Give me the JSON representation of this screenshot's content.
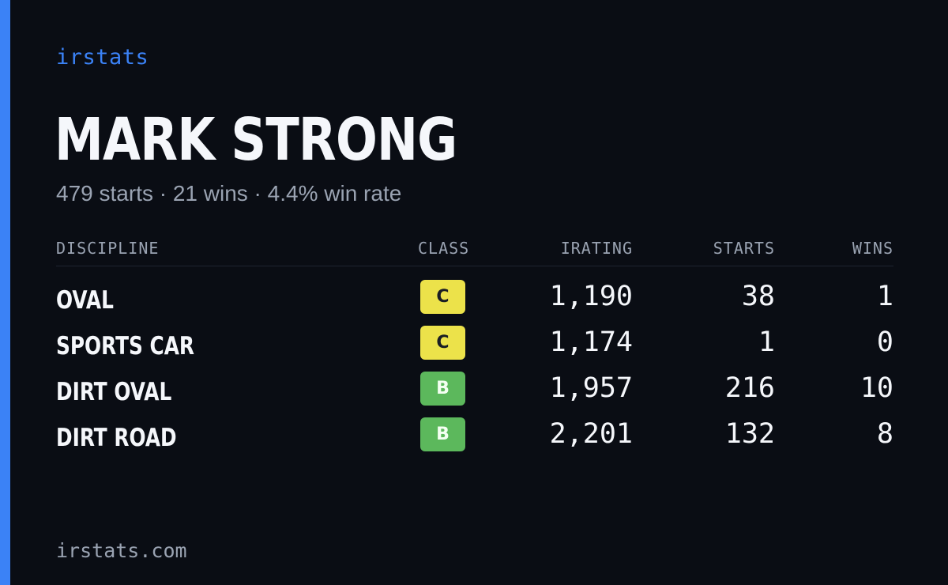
{
  "brand": "irstats",
  "player": {
    "name": "MARK STRONG",
    "summary": "479 starts · 21 wins · 4.4% win rate"
  },
  "table": {
    "headers": {
      "discipline": "DISCIPLINE",
      "class": "CLASS",
      "irating": "IRATING",
      "starts": "STARTS",
      "wins": "WINS"
    },
    "rows": [
      {
        "discipline": "OVAL",
        "class": "C",
        "irating": "1,190",
        "starts": "38",
        "wins": "1"
      },
      {
        "discipline": "SPORTS CAR",
        "class": "C",
        "irating": "1,174",
        "starts": "1",
        "wins": "0"
      },
      {
        "discipline": "DIRT OVAL",
        "class": "B",
        "irating": "1,957",
        "starts": "216",
        "wins": "10"
      },
      {
        "discipline": "DIRT ROAD",
        "class": "B",
        "irating": "2,201",
        "starts": "132",
        "wins": "8"
      }
    ]
  },
  "footer": "irstats.com",
  "colors": {
    "background": "#0a0d14",
    "accent": "#3b82f6",
    "class_c": "#ece24a",
    "class_b": "#5cb85c",
    "muted_text": "#9aa3b2"
  }
}
